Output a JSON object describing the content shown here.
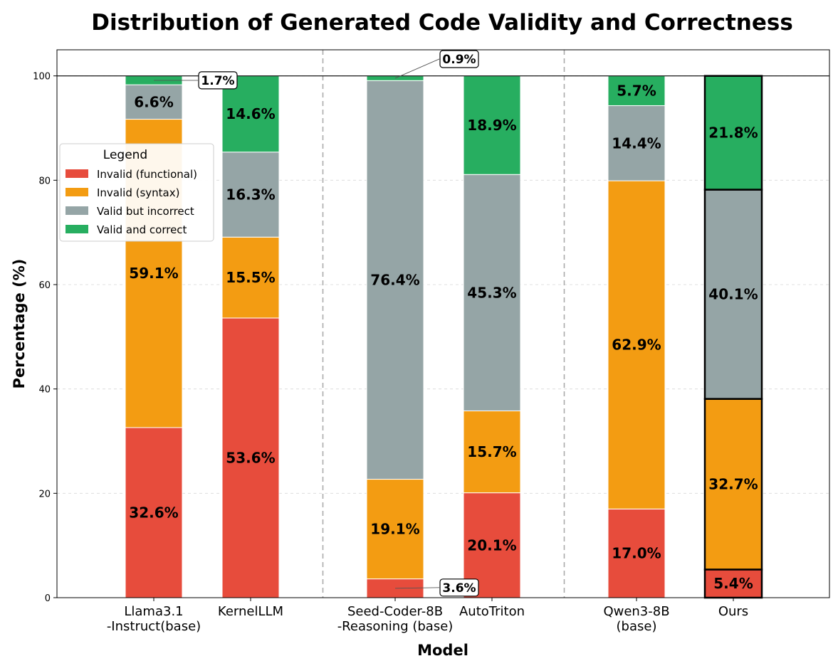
{
  "chart_data": {
    "type": "bar",
    "stacked": true,
    "title": "Distribution of Generated Code Validity and Correctness",
    "xlabel": "Model",
    "ylabel": "Percentage (%)",
    "ylim": [
      0,
      105
    ],
    "yticks": [
      0,
      20,
      40,
      60,
      80,
      100
    ],
    "grid": "y-dashed",
    "categories": [
      [
        "Llama3.1",
        "-Instruct(base)"
      ],
      [
        "KernelLLM"
      ],
      [
        "Seed-Coder-8B",
        "-Reasoning (base)"
      ],
      [
        "AutoTriton"
      ],
      [
        "Qwen3-8B",
        "(base)"
      ],
      [
        "Ours"
      ]
    ],
    "highlight_category": "Ours",
    "group_separators_after": [
      1,
      3
    ],
    "reference_line": 100,
    "series": [
      {
        "name": "Invalid (functional)",
        "color": "#e74c3c",
        "values": [
          32.6,
          53.6,
          3.6,
          20.1,
          17.0,
          5.4
        ]
      },
      {
        "name": "Invalid (syntax)",
        "color": "#f39c12",
        "values": [
          59.1,
          15.5,
          19.1,
          15.7,
          62.9,
          32.7
        ]
      },
      {
        "name": "Valid but incorrect",
        "color": "#95a5a6",
        "values": [
          6.6,
          16.3,
          76.4,
          45.3,
          14.4,
          40.1
        ]
      },
      {
        "name": "Valid and correct",
        "color": "#27ae60",
        "values": [
          1.7,
          14.6,
          0.9,
          18.9,
          5.7,
          21.8
        ]
      }
    ],
    "callouts": [
      {
        "category_index": 0,
        "series_index": 3,
        "text": "1.7%"
      },
      {
        "category_index": 2,
        "series_index": 3,
        "text": "0.9%"
      },
      {
        "category_index": 2,
        "series_index": 0,
        "text": "3.6%"
      }
    ],
    "legend": {
      "title": "Legend",
      "position": "upper-left"
    }
  }
}
